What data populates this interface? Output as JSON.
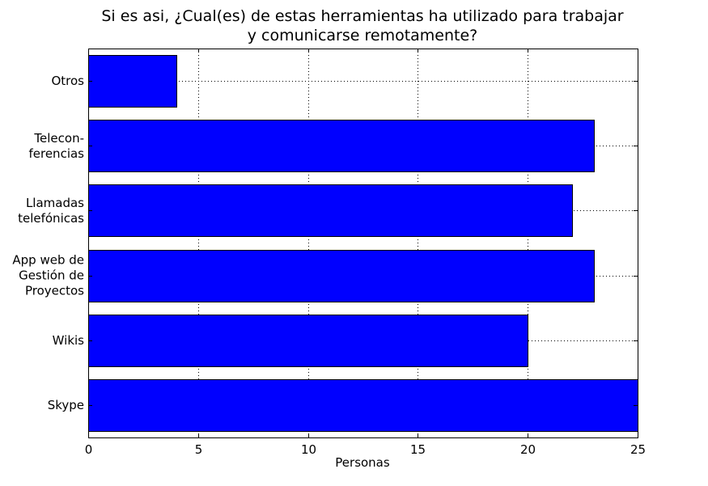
{
  "chart_data": {
    "type": "bar",
    "orientation": "horizontal",
    "title_lines": [
      "Si es asi, ¿Cual(es) de estas herramientas ha utilizado para trabajar",
      "y comunicarse remotamente?"
    ],
    "xlabel": "Personas",
    "ylabel": "",
    "categories": [
      [
        "Skype"
      ],
      [
        "Wikis"
      ],
      [
        "App web de",
        "Gestión de",
        "Proyectos"
      ],
      [
        "Llamadas",
        "telefónicas"
      ],
      [
        "Telecon-",
        "ferencias"
      ],
      [
        "Otros"
      ]
    ],
    "values": [
      25,
      20,
      23,
      22,
      23,
      4
    ],
    "xlim": [
      0,
      25
    ],
    "xticks": [
      0,
      5,
      10,
      15,
      20,
      25
    ],
    "grid": true,
    "bar_color": "#0000ff",
    "edge_color": "#000000"
  }
}
